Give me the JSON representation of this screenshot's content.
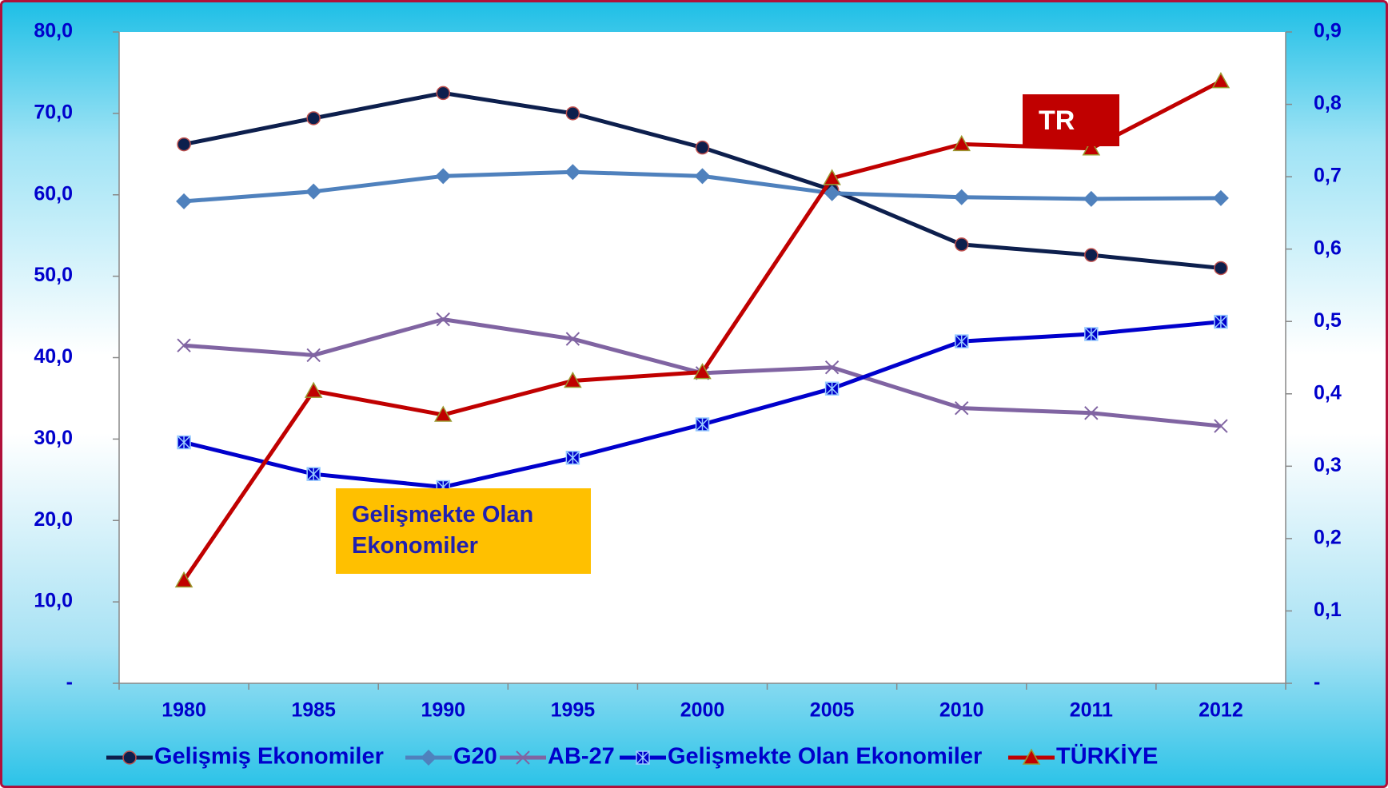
{
  "chart_data": {
    "type": "line",
    "categories": [
      "1980",
      "1985",
      "1990",
      "1995",
      "2000",
      "2005",
      "2010",
      "2011",
      "2012"
    ],
    "series": [
      {
        "name": "Gelişmiş Ekonomiler",
        "color": "#0d1f4d",
        "marker": "circle",
        "values": [
          66.2,
          69.4,
          72.5,
          70.0,
          65.8,
          60.6,
          53.9,
          52.6,
          51.0
        ]
      },
      {
        "name": "G20",
        "color": "#4f81bd",
        "marker": "diamond",
        "values": [
          59.2,
          60.4,
          62.3,
          62.8,
          62.3,
          60.2,
          59.7,
          59.5,
          59.6
        ]
      },
      {
        "name": "AB-27",
        "color": "#8064a2",
        "marker": "x",
        "values": [
          41.5,
          40.3,
          44.7,
          42.3,
          38.1,
          38.8,
          33.8,
          33.2,
          31.6
        ]
      },
      {
        "name": "Gelişmekte Olan Ekonomiler",
        "color": "#0000cc",
        "marker": "square",
        "values": [
          29.6,
          25.7,
          24.1,
          27.7,
          31.8,
          36.2,
          42.0,
          42.9,
          44.4
        ]
      },
      {
        "name": "TÜRKİYE",
        "color": "#c00000",
        "marker": "triangle",
        "axis": "y2",
        "values": [
          0.142,
          0.404,
          0.371,
          0.418,
          0.43,
          0.698,
          0.745,
          0.739,
          0.832
        ]
      }
    ],
    "ylim": [
      0,
      80
    ],
    "yticks": [
      {
        "value": 0,
        "label": "-"
      },
      {
        "value": 10,
        "label": "10,0"
      },
      {
        "value": 20,
        "label": "20,0"
      },
      {
        "value": 30,
        "label": "30,0"
      },
      {
        "value": 40,
        "label": "40,0"
      },
      {
        "value": 50,
        "label": "50,0"
      },
      {
        "value": 60,
        "label": "60,0"
      },
      {
        "value": 70,
        "label": "70,0"
      },
      {
        "value": 80,
        "label": "80,0"
      }
    ],
    "y2lim": [
      0,
      0.9
    ],
    "y2ticks": [
      {
        "value": 0,
        "label": "-"
      },
      {
        "value": 0.1,
        "label": "0,1"
      },
      {
        "value": 0.2,
        "label": "0,2"
      },
      {
        "value": 0.3,
        "label": "0,3"
      },
      {
        "value": 0.4,
        "label": "0,4"
      },
      {
        "value": 0.5,
        "label": "0,5"
      },
      {
        "value": 0.6,
        "label": "0,6"
      },
      {
        "value": 0.7,
        "label": "0,7"
      },
      {
        "value": 0.8,
        "label": "0,8"
      },
      {
        "value": 0.9,
        "label": "0,9"
      }
    ],
    "legend": "bottom",
    "annotations": [
      {
        "text": "TR",
        "color": "#c00000"
      },
      {
        "text": "Gelişmekte Olan Ekonomiler",
        "color": "#ffc000"
      }
    ]
  }
}
